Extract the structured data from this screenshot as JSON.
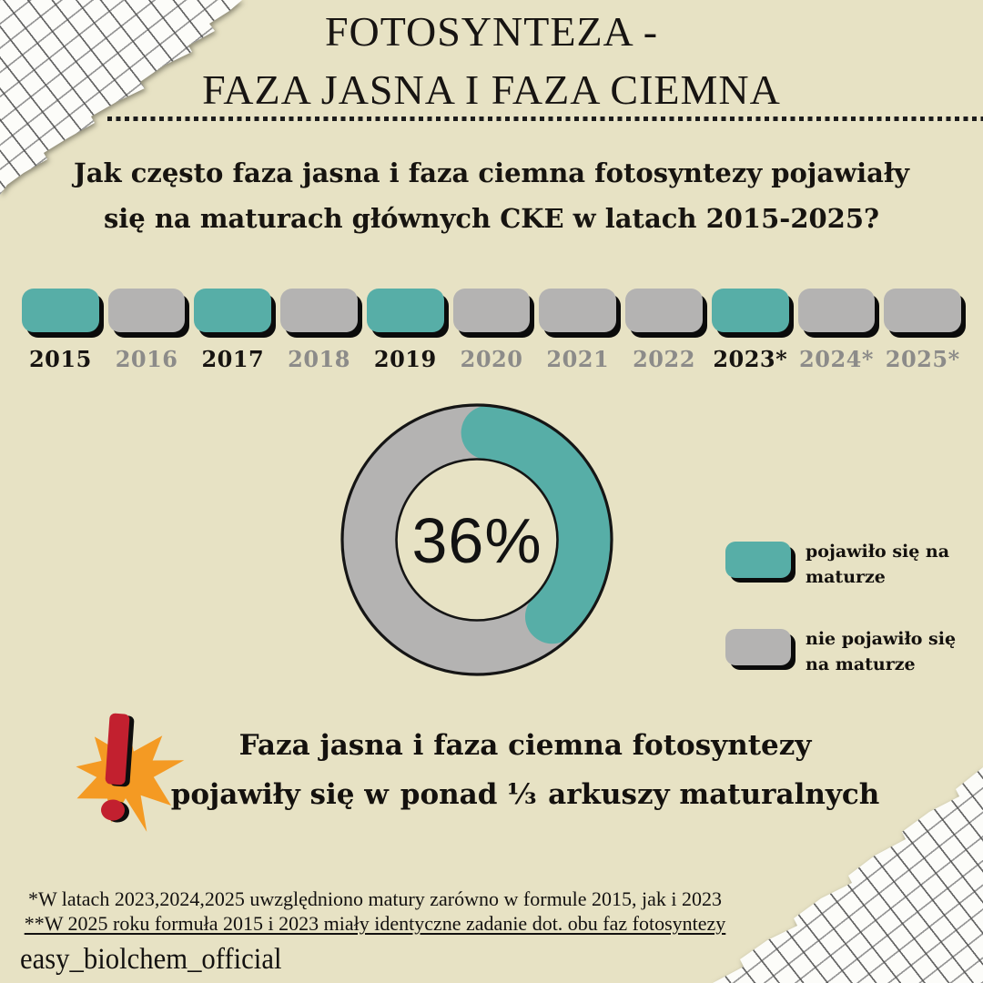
{
  "page": {
    "background": "#E7E2C4",
    "teal": "#57AEA7",
    "gray": "#B4B3B2",
    "shadow_black": "#0B0B0B",
    "highlight": "#89BEB3",
    "star_orange": "#F49A23",
    "exclamation_red": "#C2202F"
  },
  "title": {
    "line1": "FOTOSYNTEZA -",
    "line2": "FAZA JASNA I FAZA CIEMNA"
  },
  "question": {
    "line1": "Jak często faza jasna i faza ciemna fotosyntezy pojawiały",
    "line2": "się na maturach głównych CKE w latach 2015-2025?"
  },
  "timeline": {
    "years": [
      {
        "label": "2015",
        "appeared": true
      },
      {
        "label": "2016",
        "appeared": false
      },
      {
        "label": "2017",
        "appeared": true
      },
      {
        "label": "2018",
        "appeared": false
      },
      {
        "label": "2019",
        "appeared": true
      },
      {
        "label": "2020",
        "appeared": false
      },
      {
        "label": "2021",
        "appeared": false
      },
      {
        "label": "2022",
        "appeared": false
      },
      {
        "label": "2023*",
        "appeared": true
      },
      {
        "label": "2024*",
        "appeared": false
      },
      {
        "label": "2025*",
        "appeared": false
      }
    ],
    "appeared_text_color": "#161310",
    "not_appeared_text_color": "#8C8B89"
  },
  "chart_data": [
    {
      "type": "pie",
      "subtype": "donut",
      "title": "Jak często faza jasna i faza ciemna fotosyntezy pojawiały się na maturach głównych CKE w latach 2015-2025?",
      "slices": [
        {
          "label": "pojawiło się na maturze",
          "value": 36,
          "color": "#57AEA7"
        },
        {
          "label": "nie pojawiło się na maturze",
          "value": 64,
          "color": "#B4B3B2"
        }
      ],
      "center_label": "36%",
      "legend_position": "right"
    },
    {
      "type": "table",
      "title": "Obecność faz fotosyntezy na maturach CKE wg roku",
      "categories": [
        "2015",
        "2016",
        "2017",
        "2018",
        "2019",
        "2020",
        "2021",
        "2022",
        "2023*",
        "2024*",
        "2025*"
      ],
      "values": [
        1,
        0,
        1,
        0,
        1,
        0,
        0,
        0,
        1,
        0,
        0
      ],
      "value_legend": {
        "1": "pojawiło się na maturze",
        "0": "nie pojawiło się na maturze"
      }
    }
  ],
  "donut": {
    "center_label": "36%"
  },
  "legend": {
    "items": [
      {
        "line1": "pojawiło się na",
        "line2": "maturze",
        "color": "#57AEA7"
      },
      {
        "line1": "nie pojawiło się",
        "line2": "na maturze",
        "color": "#B4B3B2"
      }
    ]
  },
  "statement": {
    "line1": "Faza jasna i faza ciemna fotosyntezy",
    "line2_before": "pojawiły się w ",
    "line2_highlight": "ponad ⅓",
    "line2_after": " arkuszy maturalnych"
  },
  "footnotes": {
    "line1": "*W latach 2023,2024,2025 uwzględniono matury zarówno w formule 2015, jak i 2023",
    "line2": "**W 2025 roku formuła 2015 i 2023 miały identyczne zadanie dot. obu faz fotosyntezy"
  },
  "handle": "easy_biolchem_official"
}
